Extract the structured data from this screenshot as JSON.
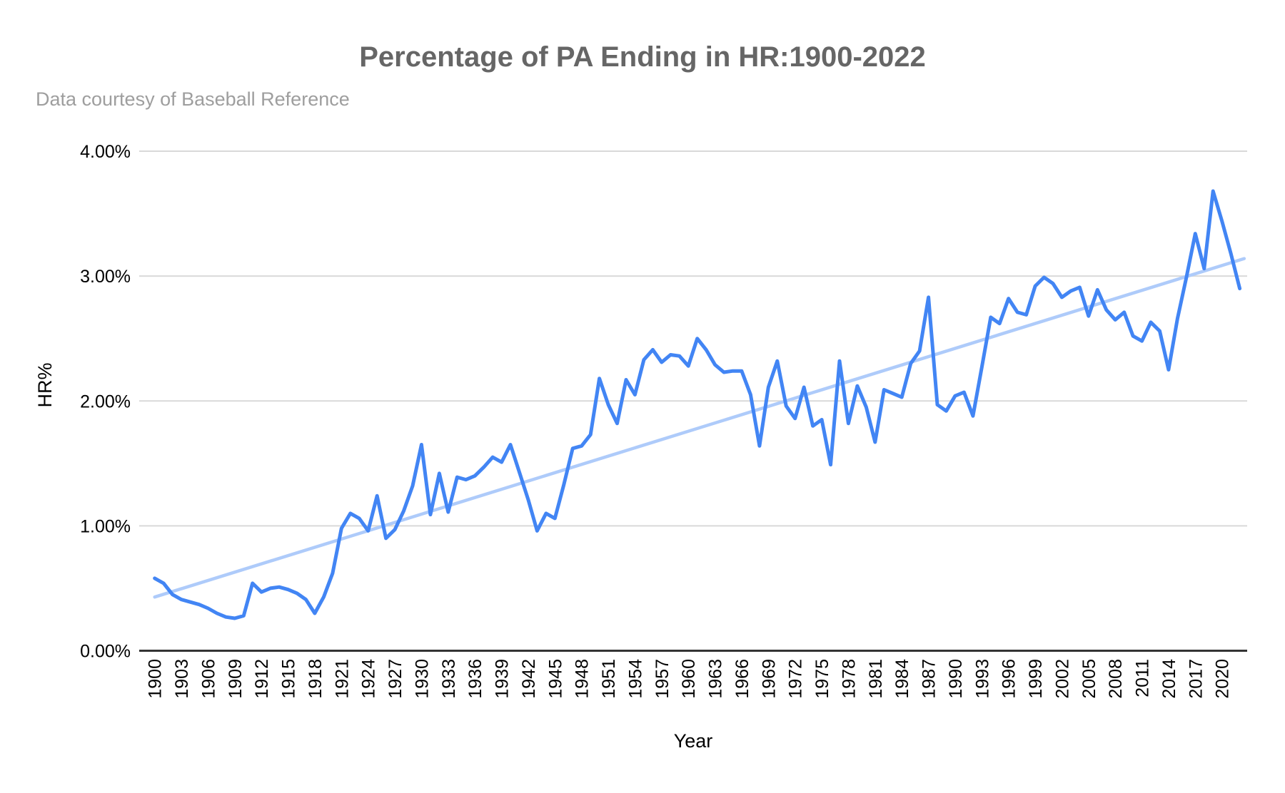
{
  "page": {
    "background": "#ffffff"
  },
  "header": {
    "title": "Percentage of PA Ending in HR:1900-2022",
    "subtitle": "Data courtesy of Baseball Reference"
  },
  "chart_data": {
    "type": "line",
    "title": "Percentage of PA Ending in HR:1900-2022",
    "subtitle": "Data courtesy of Baseball Reference",
    "xlabel": "Year",
    "ylabel": "HR%",
    "ylim": [
      0,
      4
    ],
    "xlim": [
      1898.3,
      2022.8
    ],
    "grid": true,
    "legend_position": "none",
    "axis_color": "#333333",
    "gridline_color": "#d9d9d9",
    "y_ticks": [
      {
        "label": "0.00%",
        "value": 0
      },
      {
        "label": "1.00%",
        "value": 1
      },
      {
        "label": "2.00%",
        "value": 2
      },
      {
        "label": "3.00%",
        "value": 3
      },
      {
        "label": "4.00%",
        "value": 4
      }
    ],
    "x_tick_years": [
      1900,
      1903,
      1906,
      1909,
      1912,
      1915,
      1918,
      1921,
      1924,
      1927,
      1930,
      1933,
      1936,
      1939,
      1942,
      1945,
      1948,
      1951,
      1954,
      1957,
      1960,
      1963,
      1966,
      1969,
      1972,
      1975,
      1978,
      1981,
      1984,
      1987,
      1990,
      1993,
      1996,
      1999,
      2002,
      2005,
      2008,
      2011,
      2014,
      2017,
      2020
    ],
    "series": [
      {
        "name": "HR%",
        "color": "#4285f4",
        "x": [
          1900,
          1901,
          1902,
          1903,
          1904,
          1905,
          1906,
          1907,
          1908,
          1909,
          1910,
          1911,
          1912,
          1913,
          1914,
          1915,
          1916,
          1917,
          1918,
          1919,
          1920,
          1921,
          1922,
          1923,
          1924,
          1925,
          1926,
          1927,
          1928,
          1929,
          1930,
          1931,
          1932,
          1933,
          1934,
          1935,
          1936,
          1937,
          1938,
          1939,
          1940,
          1941,
          1942,
          1943,
          1944,
          1945,
          1946,
          1947,
          1948,
          1949,
          1950,
          1951,
          1952,
          1953,
          1954,
          1955,
          1956,
          1957,
          1958,
          1959,
          1960,
          1961,
          1962,
          1963,
          1964,
          1965,
          1966,
          1967,
          1968,
          1969,
          1970,
          1971,
          1972,
          1973,
          1974,
          1975,
          1976,
          1977,
          1978,
          1979,
          1980,
          1981,
          1982,
          1983,
          1984,
          1985,
          1986,
          1987,
          1988,
          1989,
          1990,
          1991,
          1992,
          1993,
          1994,
          1995,
          1996,
          1997,
          1998,
          1999,
          2000,
          2001,
          2002,
          2003,
          2004,
          2005,
          2006,
          2007,
          2008,
          2009,
          2010,
          2011,
          2012,
          2013,
          2014,
          2015,
          2016,
          2017,
          2018,
          2019,
          2020,
          2021,
          2022
        ],
        "values": [
          0.58,
          0.54,
          0.45,
          0.41,
          0.39,
          0.37,
          0.34,
          0.3,
          0.27,
          0.26,
          0.28,
          0.54,
          0.47,
          0.5,
          0.51,
          0.49,
          0.46,
          0.41,
          0.3,
          0.43,
          0.62,
          0.98,
          1.1,
          1.06,
          0.96,
          1.24,
          0.9,
          0.97,
          1.12,
          1.32,
          1.65,
          1.09,
          1.42,
          1.11,
          1.39,
          1.37,
          1.4,
          1.47,
          1.55,
          1.51,
          1.65,
          1.43,
          1.21,
          0.96,
          1.1,
          1.06,
          1.33,
          1.62,
          1.64,
          1.73,
          2.18,
          1.97,
          1.82,
          2.17,
          2.05,
          2.33,
          2.41,
          2.31,
          2.37,
          2.36,
          2.28,
          2.5,
          2.41,
          2.29,
          2.23,
          2.24,
          2.24,
          2.05,
          1.64,
          2.11,
          2.32,
          1.96,
          1.86,
          2.11,
          1.8,
          1.85,
          1.49,
          2.32,
          1.82,
          2.12,
          1.95,
          1.67,
          2.09,
          2.06,
          2.03,
          2.3,
          2.4,
          2.83,
          1.97,
          1.92,
          2.04,
          2.07,
          1.88,
          2.27,
          2.67,
          2.62,
          2.82,
          2.71,
          2.69,
          2.92,
          2.99,
          2.94,
          2.83,
          2.88,
          2.91,
          2.68,
          2.89,
          2.73,
          2.65,
          2.71,
          2.52,
          2.48,
          2.63,
          2.56,
          2.25,
          2.66,
          2.99,
          3.34,
          3.06,
          3.68,
          3.44,
          3.18,
          2.9
        ]
      }
    ],
    "trendline": {
      "name": "linear-trend",
      "color": "#aecbfa",
      "x": [
        1900,
        2022.5
      ],
      "values": [
        0.43,
        3.14
      ]
    }
  }
}
